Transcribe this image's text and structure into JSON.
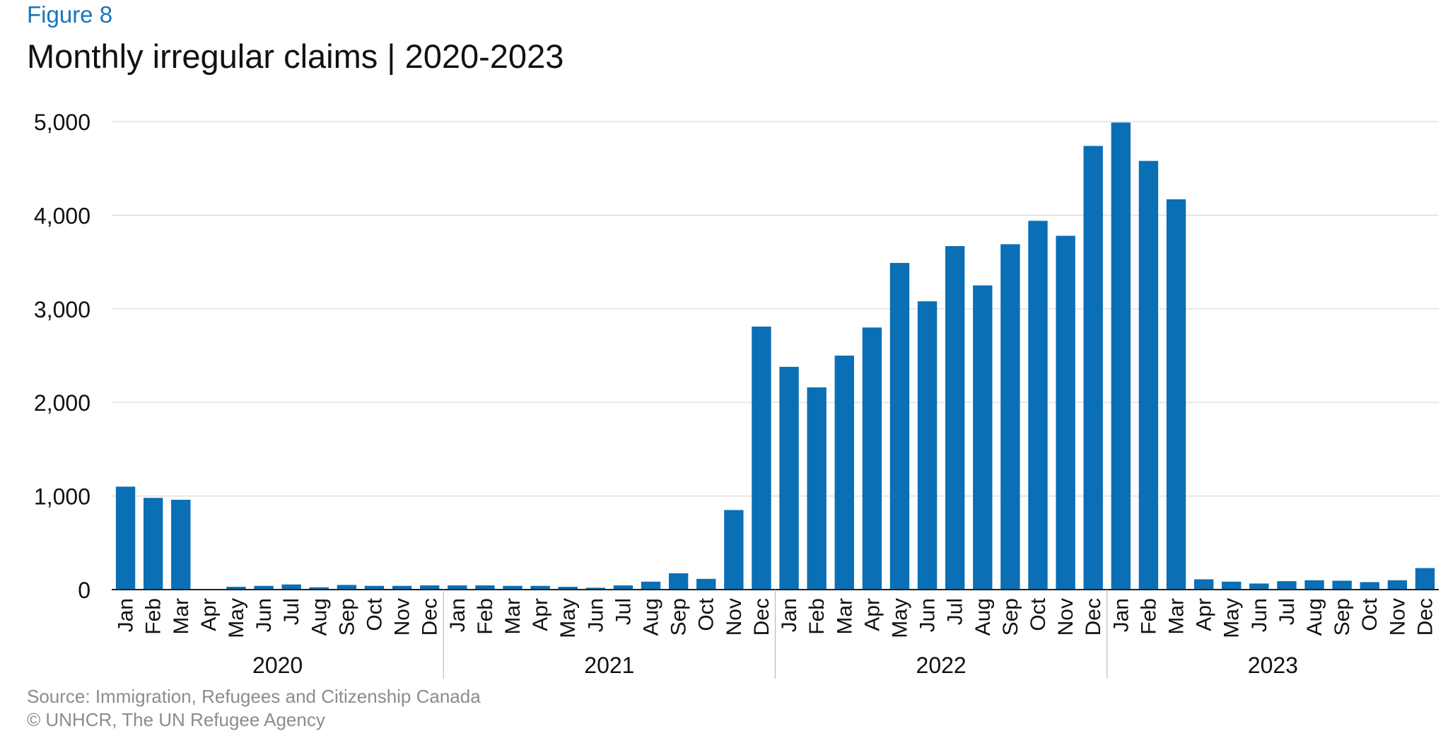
{
  "figure_label": "Figure 8",
  "source_text": "Source: Immigration, Refugees and Citizenship Canada",
  "copyright_text": "© UNHCR, The UN Refugee Agency",
  "colors": {
    "bar": "#0a6fb5",
    "grid": "#d9d9d9",
    "axis": "#222222",
    "label": "#111111",
    "muted": "#8c8c8c",
    "accent": "#1a75bb"
  },
  "chart_data": {
    "type": "bar",
    "title": "Monthly irregular claims | 2020-2023",
    "xlabel": "",
    "ylabel": "",
    "ylim": [
      0,
      5000
    ],
    "yticks": [
      0,
      1000,
      2000,
      3000,
      4000,
      5000
    ],
    "ytick_labels": [
      "0",
      "1,000",
      "2,000",
      "3,000",
      "4,000",
      "5,000"
    ],
    "grid": true,
    "legend": "none",
    "months": [
      "Jan",
      "Feb",
      "Mar",
      "Apr",
      "May",
      "Jun",
      "Jul",
      "Aug",
      "Sep",
      "Oct",
      "Nov",
      "Dec"
    ],
    "years": [
      "2020",
      "2021",
      "2022",
      "2023"
    ],
    "series": [
      {
        "values": [
          1100,
          980,
          960,
          5,
          30,
          40,
          55,
          25,
          50,
          40,
          40,
          45,
          45,
          45,
          40,
          40,
          30,
          20,
          45,
          85,
          175,
          115,
          850,
          2810,
          2380,
          2160,
          2500,
          2800,
          3490,
          3080,
          3670,
          3250,
          3690,
          3940,
          3780,
          4740,
          4990,
          4580,
          4170,
          110,
          85,
          65,
          90,
          100,
          95,
          80,
          100,
          230
        ]
      }
    ]
  }
}
